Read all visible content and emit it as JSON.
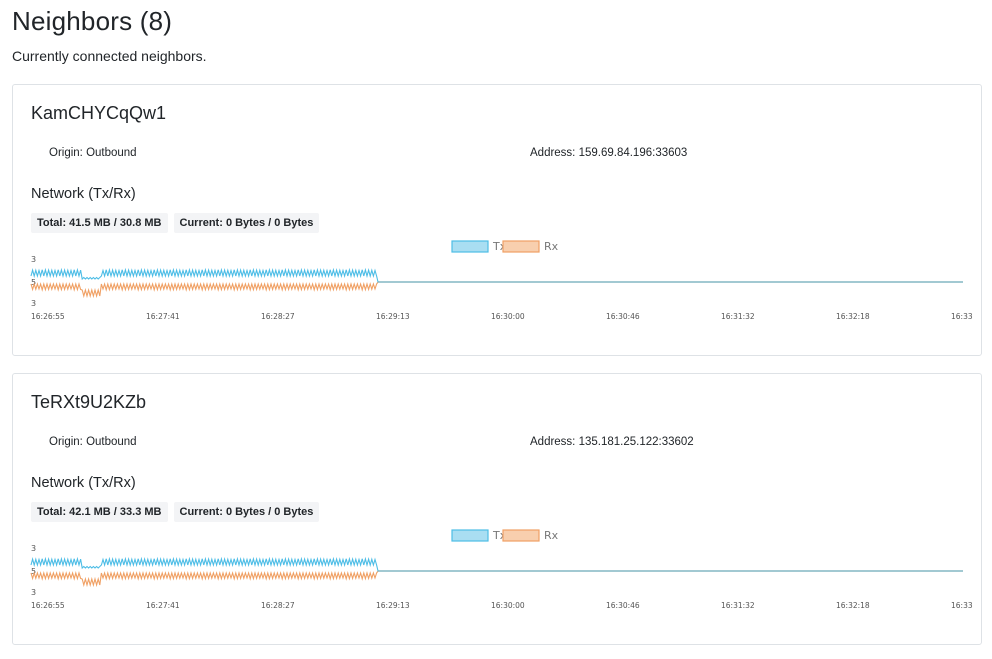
{
  "page": {
    "title": "Neighbors (8)",
    "subtitle": "Currently connected neighbors."
  },
  "neighbors": [
    {
      "id": "KamCHYCqQw1",
      "origin": "Origin: Outbound",
      "address": "Address: 159.69.84.196:33603",
      "network_title": "Network (Tx/Rx)",
      "total": "Total: 41.5 MB / 30.8 MB",
      "current": "Current: 0 Bytes / 0 Bytes"
    },
    {
      "id": "TeRXt9U2KZb",
      "origin": "Origin: Outbound",
      "address": "Address: 135.181.25.122:33602",
      "network_title": "Network (Tx/Rx)",
      "total": "Total: 42.1 MB / 33.3 MB",
      "current": "Current: 0 Bytes / 0 Bytes"
    }
  ],
  "chart_data": [
    {
      "type": "line",
      "legend": [
        "Tx",
        "Rx"
      ],
      "legend_position": "top-center",
      "y_tick_labels": [
        "3",
        "5",
        "3"
      ],
      "x_tick_labels": [
        "16:26:55",
        "16:27:41",
        "16:28:27",
        "16:29:13",
        "16:30:00",
        "16:30:46",
        "16:31:32",
        "16:32:18",
        "16:33"
      ],
      "activity_end": "16:29:13",
      "colors": {
        "tx": "#4dbde6",
        "rx": "#f0a064"
      },
      "grid": false
    },
    {
      "type": "line",
      "legend": [
        "Tx",
        "Rx"
      ],
      "legend_position": "top-center",
      "y_tick_labels": [
        "3",
        "5",
        "3"
      ],
      "x_tick_labels": [
        "16:26:55",
        "16:27:41",
        "16:28:27",
        "16:29:13",
        "16:30:00",
        "16:30:46",
        "16:31:32",
        "16:32:18",
        "16:33"
      ],
      "activity_end": "16:29:13",
      "colors": {
        "tx": "#4dbde6",
        "rx": "#f0a064"
      },
      "grid": false
    }
  ]
}
